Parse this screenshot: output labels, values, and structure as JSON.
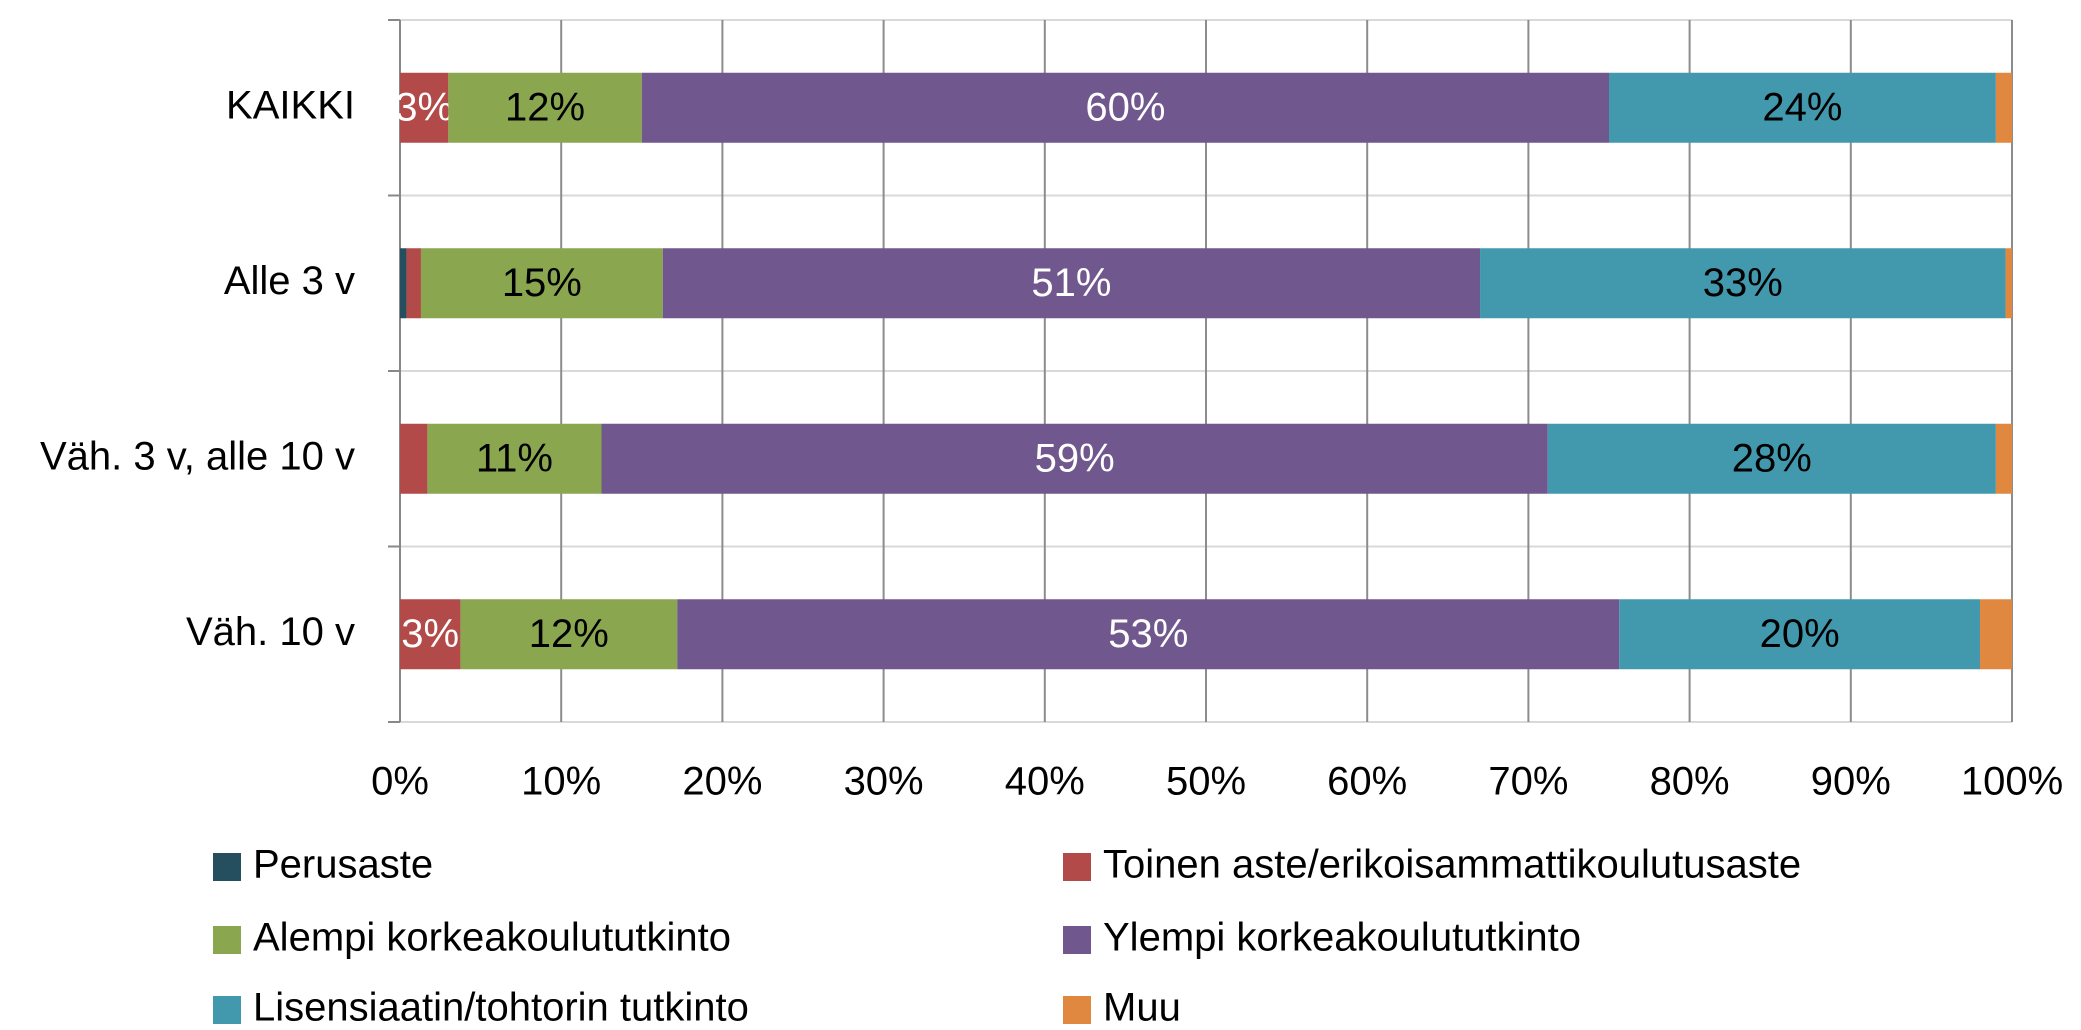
{
  "chart_data": {
    "type": "stacked_percent_barh",
    "categories": [
      "KAIKKI",
      "Alle 3 v",
      "Väh. 3 v, alle 10 v",
      "Väh. 10 v"
    ],
    "series": [
      {
        "name": "Perusaste",
        "color": "#254e5f",
        "values": [
          0,
          0.4,
          0,
          0
        ],
        "value_labels": [
          null,
          null,
          null,
          null
        ]
      },
      {
        "name": "Toinen aste/erikoisammattikoulutusaste",
        "color": "#b14a48",
        "values": [
          3,
          0.9,
          1.7,
          3.4
        ],
        "value_labels": [
          "3%",
          null,
          null,
          "3%"
        ]
      },
      {
        "name": "Alempi korkeakoulututkinto",
        "color": "#8aa64f",
        "values": [
          12,
          15,
          10.8,
          12.2
        ],
        "value_labels": [
          "12%",
          "15%",
          "11%",
          "12%"
        ]
      },
      {
        "name": "Ylempi korkeakoulututkinto",
        "color": "#70578e",
        "values": [
          60,
          50.7,
          58.7,
          53
        ],
        "value_labels": [
          "60%",
          "51%",
          "59%",
          "53%"
        ]
      },
      {
        "name": "Lisensiaatin/tohtorin tutkinto",
        "color": "#4298ad",
        "values": [
          24,
          32.6,
          27.8,
          20.3
        ],
        "value_labels": [
          "24%",
          "33%",
          "28%",
          "20%"
        ]
      },
      {
        "name": "Muu",
        "color": "#e0883f",
        "values": [
          1,
          0.4,
          1,
          1.8
        ],
        "value_labels": [
          null,
          null,
          null,
          null
        ]
      }
    ],
    "xlim": [
      0,
      100
    ],
    "xticks": [
      {
        "value": 0,
        "label": "0%"
      },
      {
        "value": 10,
        "label": "10%"
      },
      {
        "value": 20,
        "label": "20%"
      },
      {
        "value": 30,
        "label": "30%"
      },
      {
        "value": 40,
        "label": "40%"
      },
      {
        "value": 50,
        "label": "50%"
      },
      {
        "value": 60,
        "label": "60%"
      },
      {
        "value": 70,
        "label": "70%"
      },
      {
        "value": 80,
        "label": "80%"
      },
      {
        "value": 90,
        "label": "90%"
      },
      {
        "value": 100,
        "label": "100%"
      }
    ],
    "grid": true,
    "legend": "bottom"
  }
}
